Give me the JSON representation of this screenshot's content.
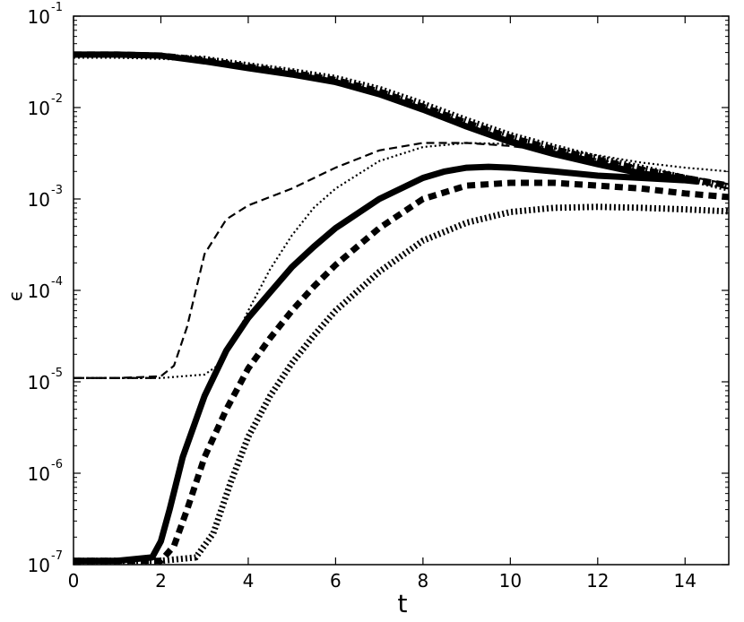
{
  "chart_data": {
    "type": "line",
    "title": "",
    "xlabel": "t",
    "ylabel": "ϵ",
    "xlim": [
      0,
      15
    ],
    "ylim": [
      1e-07,
      0.1
    ],
    "yscale": "log",
    "grid": false,
    "x_ticks": [
      0,
      2,
      4,
      6,
      8,
      10,
      12,
      14
    ],
    "y_ticks": [
      {
        "value": 1e-07,
        "base": "10",
        "exp": "-7"
      },
      {
        "value": 1e-06,
        "base": "10",
        "exp": "-6"
      },
      {
        "value": 1e-05,
        "base": "10",
        "exp": "-5"
      },
      {
        "value": 0.0001,
        "base": "10",
        "exp": "-4"
      },
      {
        "value": 0.001,
        "base": "10",
        "exp": "-3"
      },
      {
        "value": 0.01,
        "base": "10",
        "exp": "-2"
      },
      {
        "value": 0.1,
        "base": "10",
        "exp": "-1"
      }
    ],
    "series": [
      {
        "style": "solid-thick",
        "x": [
          0,
          1,
          1.8,
          2.0,
          2.2,
          2.5,
          3.0,
          3.5,
          4.0,
          4.5,
          5.0,
          5.5,
          6.0,
          7.0,
          8.0,
          8.5,
          9.0,
          9.5,
          10.0,
          11.0,
          12.0,
          13.0,
          14.0,
          14.3
        ],
        "y": [
          1.1e-07,
          1.1e-07,
          1.2e-07,
          1.8e-07,
          4e-07,
          1.5e-06,
          7e-06,
          2.2e-05,
          5e-05,
          9.5e-05,
          0.00018,
          0.0003,
          0.00048,
          0.001,
          0.0017,
          0.002,
          0.0022,
          0.00225,
          0.0022,
          0.002,
          0.0018,
          0.0017,
          0.0016,
          0.00155
        ]
      },
      {
        "style": "dashed-thick",
        "x": [
          0,
          1,
          2.0,
          2.3,
          2.6,
          3.0,
          3.5,
          4.0,
          4.5,
          5.0,
          5.5,
          6.0,
          7.0,
          8.0,
          9.0,
          10.0,
          11.0,
          12.0,
          13.0,
          14.0,
          15.0
        ],
        "y": [
          1.1e-07,
          1.1e-07,
          1.1e-07,
          1.6e-07,
          4e-07,
          1.5e-06,
          5e-06,
          1.4e-05,
          3e-05,
          6e-05,
          0.00011,
          0.00019,
          0.00048,
          0.001,
          0.0014,
          0.0015,
          0.0015,
          0.0014,
          0.0013,
          0.00115,
          0.00105
        ]
      },
      {
        "style": "dotted-thick",
        "x": [
          0,
          1,
          2.0,
          2.8,
          3.2,
          3.6,
          4.0,
          4.5,
          5.0,
          5.5,
          6.0,
          7.0,
          8.0,
          9.0,
          10.0,
          11.0,
          12.0,
          13.0,
          14.0,
          15.0
        ],
        "y": [
          1.1e-07,
          1.1e-07,
          1.1e-07,
          1.2e-07,
          2.2e-07,
          8e-07,
          2.5e-06,
          7e-06,
          1.6e-05,
          3.2e-05,
          6e-05,
          0.00016,
          0.00035,
          0.00055,
          0.00072,
          0.0008,
          0.00082,
          0.0008,
          0.00077,
          0.00073
        ]
      },
      {
        "style": "dashed-thin",
        "x": [
          0,
          1,
          2.0,
          2.3,
          2.6,
          3.0,
          3.5,
          4.0,
          5.0,
          6.0,
          7.0,
          8.0,
          9.0,
          10.0,
          11.0,
          12.0,
          13.0,
          14.0,
          15.0
        ],
        "y": [
          1.1e-05,
          1.1e-05,
          1.15e-05,
          1.5e-05,
          4e-05,
          0.00025,
          0.0006,
          0.00085,
          0.0013,
          0.0022,
          0.0034,
          0.0041,
          0.0041,
          0.0038,
          0.0033,
          0.0027,
          0.0022,
          0.0018,
          0.00145
        ]
      },
      {
        "style": "dotted-thin",
        "x": [
          0,
          1,
          2.0,
          2.5,
          3.0,
          3.3,
          3.7,
          4.0,
          4.5,
          5.0,
          5.5,
          6.0,
          7.0,
          8.0,
          9.0,
          10.0,
          11.0,
          12.0,
          13.0,
          14.0,
          15.0
        ],
        "y": [
          1.1e-05,
          1.1e-05,
          1.1e-05,
          1.15e-05,
          1.2e-05,
          1.5e-05,
          3e-05,
          6e-05,
          0.00017,
          0.0004,
          0.0008,
          0.0013,
          0.0026,
          0.0037,
          0.0041,
          0.004,
          0.0036,
          0.003,
          0.0025,
          0.0022,
          0.002
        ]
      },
      {
        "style": "solid-thick",
        "x": [
          0,
          1,
          2.0,
          3.0,
          4.0,
          5.0,
          6.0,
          7.0,
          8.0,
          9.0,
          10.0,
          11.0,
          12.0,
          13.0,
          14.0,
          14.3
        ],
        "y": [
          0.038,
          0.038,
          0.037,
          0.032,
          0.027,
          0.023,
          0.019,
          0.014,
          0.0095,
          0.0062,
          0.0042,
          0.0031,
          0.0024,
          0.0019,
          0.00165,
          0.0016
        ]
      },
      {
        "style": "dashed-thick",
        "x": [
          0,
          1,
          2.0,
          3.0,
          4.0,
          5.0,
          6.0,
          7.0,
          8.0,
          9.0,
          10.0,
          11.0,
          12.0,
          13.0,
          14.0,
          15.0
        ],
        "y": [
          0.038,
          0.038,
          0.037,
          0.033,
          0.028,
          0.024,
          0.02,
          0.015,
          0.0102,
          0.0068,
          0.0047,
          0.0035,
          0.0027,
          0.0021,
          0.0017,
          0.0014
        ]
      },
      {
        "style": "dotted-thick",
        "x": [
          0,
          1,
          2.0,
          3.0,
          4.0,
          5.0,
          6.0,
          7.0,
          8.0,
          9.0,
          10.0,
          11.0,
          12.0,
          13.0,
          14.0,
          15.0
        ],
        "y": [
          0.037,
          0.037,
          0.036,
          0.034,
          0.029,
          0.025,
          0.021,
          0.016,
          0.011,
          0.0073,
          0.005,
          0.0037,
          0.0028,
          0.0022,
          0.0017,
          0.0013
        ]
      },
      {
        "style": "dashdot-thin",
        "x": [
          0,
          1,
          2.0,
          3.0,
          4.0,
          5.0,
          6.0,
          7.0,
          8.0,
          9.0,
          10.0,
          11.0,
          12.0,
          13.0,
          14.0,
          15.0
        ],
        "y": [
          0.037,
          0.037,
          0.036,
          0.033,
          0.028,
          0.024,
          0.02,
          0.0145,
          0.0098,
          0.0064,
          0.0045,
          0.0034,
          0.0026,
          0.002,
          0.0016,
          0.0013
        ]
      },
      {
        "style": "dashdot-thin",
        "x": [
          0,
          1,
          1.9
        ],
        "y": [
          1.1e-05,
          1.1e-05,
          1.1e-05
        ]
      }
    ]
  }
}
